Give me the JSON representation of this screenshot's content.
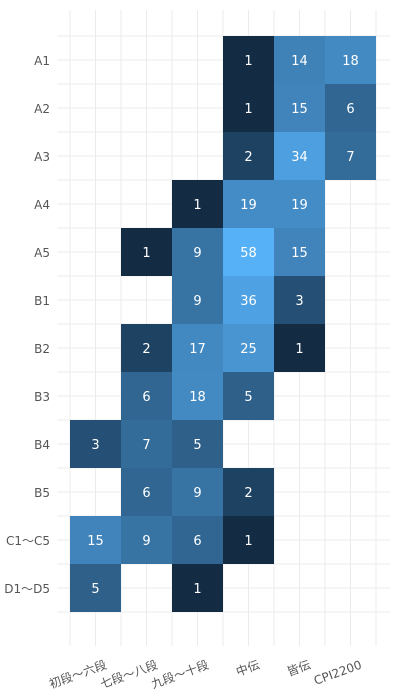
{
  "chart_data": {
    "type": "heatmap",
    "title": "",
    "xlabel": "",
    "ylabel": "",
    "rows": [
      "A1",
      "A2",
      "A3",
      "A4",
      "A5",
      "B1",
      "B2",
      "B3",
      "B4",
      "B5",
      "C1～C5",
      "D1～D5"
    ],
    "columns": [
      "初段～六段",
      "七段～八段",
      "九段～十段",
      "中伝",
      "皆伝",
      "CPI2200"
    ],
    "cells": [
      {
        "row": "A1",
        "col": "中伝",
        "value": 1
      },
      {
        "row": "A1",
        "col": "皆伝",
        "value": 14
      },
      {
        "row": "A1",
        "col": "CPI2200",
        "value": 18
      },
      {
        "row": "A2",
        "col": "中伝",
        "value": 1
      },
      {
        "row": "A2",
        "col": "皆伝",
        "value": 15
      },
      {
        "row": "A2",
        "col": "CPI2200",
        "value": 6
      },
      {
        "row": "A3",
        "col": "中伝",
        "value": 2
      },
      {
        "row": "A3",
        "col": "皆伝",
        "value": 34
      },
      {
        "row": "A3",
        "col": "CPI2200",
        "value": 7
      },
      {
        "row": "A4",
        "col": "九段～十段",
        "value": 1
      },
      {
        "row": "A4",
        "col": "中伝",
        "value": 19
      },
      {
        "row": "A4",
        "col": "皆伝",
        "value": 19
      },
      {
        "row": "A5",
        "col": "七段～八段",
        "value": 1
      },
      {
        "row": "A5",
        "col": "九段～十段",
        "value": 9
      },
      {
        "row": "A5",
        "col": "中伝",
        "value": 58
      },
      {
        "row": "A5",
        "col": "皆伝",
        "value": 15
      },
      {
        "row": "B1",
        "col": "九段～十段",
        "value": 9
      },
      {
        "row": "B1",
        "col": "中伝",
        "value": 36
      },
      {
        "row": "B1",
        "col": "皆伝",
        "value": 3
      },
      {
        "row": "B2",
        "col": "七段～八段",
        "value": 2
      },
      {
        "row": "B2",
        "col": "九段～十段",
        "value": 17
      },
      {
        "row": "B2",
        "col": "中伝",
        "value": 25
      },
      {
        "row": "B2",
        "col": "皆伝",
        "value": 1
      },
      {
        "row": "B3",
        "col": "七段～八段",
        "value": 6
      },
      {
        "row": "B3",
        "col": "九段～十段",
        "value": 18
      },
      {
        "row": "B3",
        "col": "中伝",
        "value": 5
      },
      {
        "row": "B4",
        "col": "初段～六段",
        "value": 3
      },
      {
        "row": "B4",
        "col": "七段～八段",
        "value": 7
      },
      {
        "row": "B4",
        "col": "九段～十段",
        "value": 5
      },
      {
        "row": "B5",
        "col": "七段～八段",
        "value": 6
      },
      {
        "row": "B5",
        "col": "九段～十段",
        "value": 9
      },
      {
        "row": "B5",
        "col": "中伝",
        "value": 2
      },
      {
        "row": "C1～C5",
        "col": "初段～六段",
        "value": 15
      },
      {
        "row": "C1～C5",
        "col": "七段～八段",
        "value": 9
      },
      {
        "row": "C1～C5",
        "col": "九段～十段",
        "value": 6
      },
      {
        "row": "C1～C5",
        "col": "中伝",
        "value": 1
      },
      {
        "row": "D1～D5",
        "col": "初段～六段",
        "value": 5
      },
      {
        "row": "D1～D5",
        "col": "九段～十段",
        "value": 1
      }
    ],
    "color_low": "#132b43",
    "color_high": "#56b1f7",
    "grid": true,
    "legend": "none"
  }
}
